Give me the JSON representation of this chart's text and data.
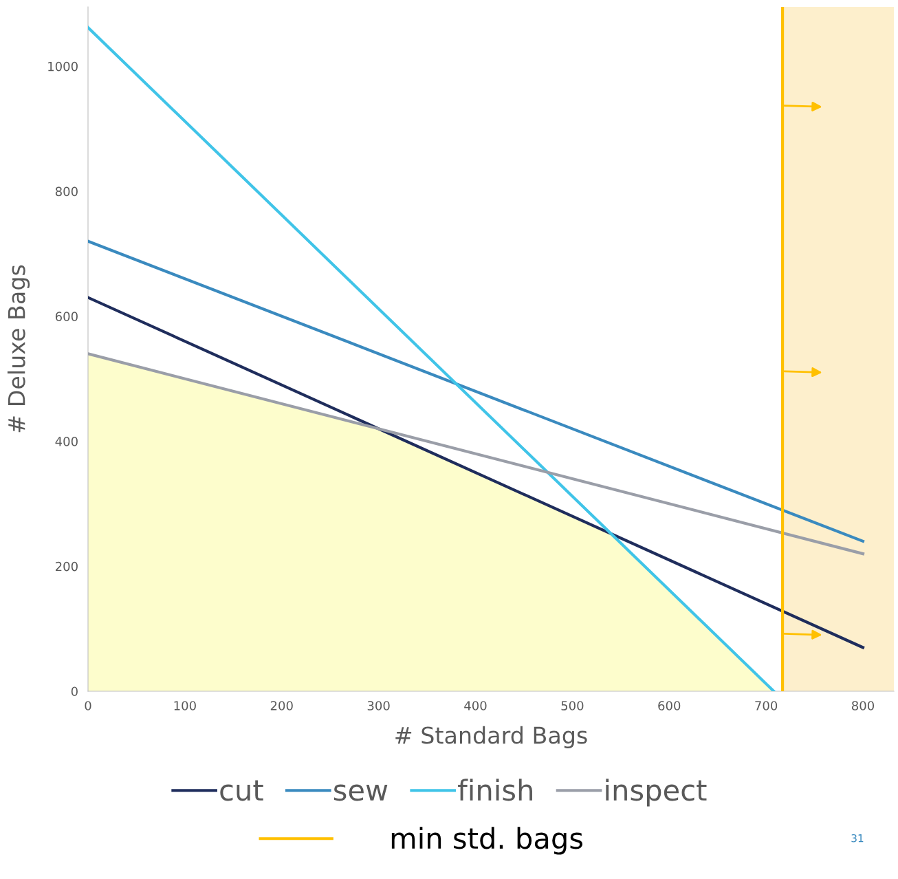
{
  "chart_data": {
    "type": "line",
    "xlabel": "# Standard Bags",
    "ylabel": "# Deluxe Bags",
    "xlim": [
      0,
      832
    ],
    "ylim": [
      0,
      1095
    ],
    "xticks": [
      0,
      100,
      200,
      300,
      400,
      500,
      600,
      700,
      800
    ],
    "yticks": [
      0,
      200,
      400,
      600,
      800,
      1000
    ],
    "grid": false,
    "legend": "bottom",
    "series": [
      {
        "type": "area",
        "color": "#fdfdcc",
        "x": [
          0,
          300,
          540,
          708
        ],
        "values": [
          540,
          420,
          252,
          0
        ]
      },
      {
        "name": "cut",
        "color": "#1f2d5c",
        "x": [
          0,
          800
        ],
        "values": [
          630,
          70
        ]
      },
      {
        "name": "sew",
        "color": "#3a8abf",
        "x": [
          0,
          800
        ],
        "values": [
          720,
          240
        ]
      },
      {
        "name": "finish",
        "color": "#40c4e8",
        "x": [
          0,
          708
        ],
        "values": [
          1062,
          0
        ]
      },
      {
        "name": "inspect",
        "color": "#9a9ea8",
        "x": [
          0,
          800
        ],
        "values": [
          540,
          220
        ]
      }
    ],
    "bands": [
      {
        "axis": "x",
        "from": 717,
        "to": 832,
        "color": "#fdefcc"
      }
    ],
    "ref_lines": [
      {
        "axis": "x",
        "value": 717,
        "label": "min std. bags",
        "color": "#ffc000"
      }
    ],
    "annotations": [
      "31"
    ]
  }
}
